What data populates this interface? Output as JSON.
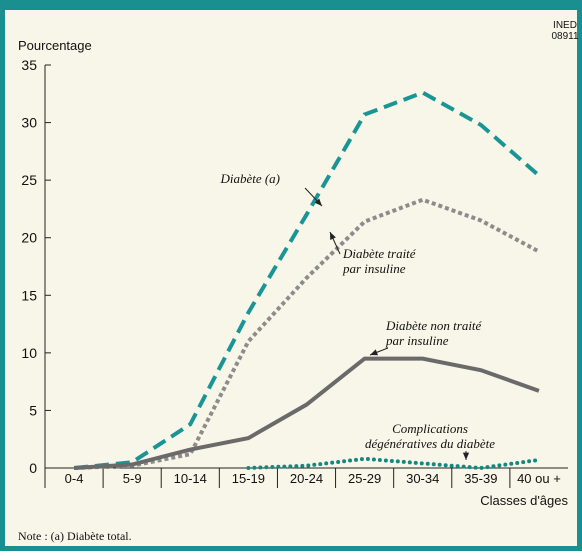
{
  "chart_data": {
    "type": "line",
    "source_code": [
      "INED",
      "08911"
    ],
    "y_label": "Pourcentage",
    "x_label": "Classes d'âges",
    "note": "Note : (a) Diabète total.",
    "categories": [
      "0-4",
      "5-9",
      "10-14",
      "15-19",
      "20-24",
      "25-29",
      "30-34",
      "35-39",
      "40 ou +"
    ],
    "series": [
      {
        "name": [
          "Diabète (a)"
        ],
        "color": "#1a9595",
        "style": "dashed",
        "values": [
          0,
          0.5,
          3.8,
          13.5,
          22,
          30.7,
          32.6,
          29.8,
          25.4
        ]
      },
      {
        "name": [
          "Diabète traité",
          "par insuline"
        ],
        "color": "#8c8c8c",
        "style": "dotted",
        "values": [
          0,
          0.2,
          1.2,
          11,
          16.5,
          21.4,
          23.3,
          21.5,
          18.8
        ]
      },
      {
        "name": [
          "Diabète non traité",
          "par insuline"
        ],
        "color": "#6a6a6a",
        "style": "solid",
        "values": [
          0,
          0.3,
          1.6,
          2.6,
          5.5,
          9.5,
          9.5,
          8.5,
          6.7
        ]
      },
      {
        "name": [
          "Complications",
          "dégénératives du diabète"
        ],
        "color": "#14877f",
        "style": "dots",
        "values": [
          null,
          null,
          null,
          0,
          0.2,
          0.8,
          0.4,
          0,
          0.7
        ]
      }
    ],
    "ylim": [
      0,
      35
    ],
    "yticks": [
      0,
      5,
      10,
      15,
      20,
      25,
      30,
      35
    ]
  }
}
